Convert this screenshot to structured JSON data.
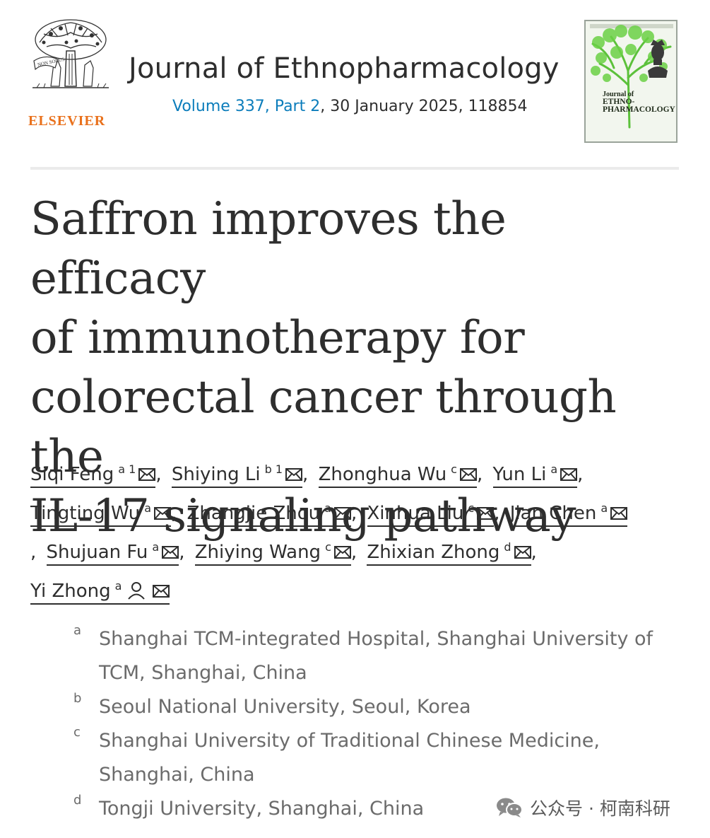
{
  "header": {
    "publisher": "ELSEVIER",
    "journal_title": "Journal of Ethnopharmacology",
    "volume_part": "Volume 337, Part 2",
    "date_article": ", 30 January 2025, 118854",
    "logo_motto": "NON SOLUS",
    "cover": {
      "line1": "Journal of",
      "line2": "ETHNO-",
      "line3": "PHARMACOLOGY"
    }
  },
  "article": {
    "title_lines": [
      "Saffron improves the efficacy",
      "of immunotherapy for",
      "colorectal cancer through the",
      "IL-17 signaling pathway"
    ]
  },
  "authors": [
    {
      "name": "Siqi Feng",
      "sup": "a 1"
    },
    {
      "name": "Shiying Li",
      "sup": "b 1"
    },
    {
      "name": "Zhonghua Wu",
      "sup": "c"
    },
    {
      "name": "Yun Li",
      "sup": "a"
    },
    {
      "name": "Tingting Wu",
      "sup": "a"
    },
    {
      "name": "Zhangjie Zhou",
      "sup": "a"
    },
    {
      "name": "Xinhua Liu",
      "sup": "c"
    },
    {
      "name": "Jian Chen",
      "sup": "a"
    },
    {
      "name": "Shujuan Fu",
      "sup": "a"
    },
    {
      "name": "Zhiying Wang",
      "sup": "c"
    },
    {
      "name": "Zhixian Zhong",
      "sup": "d"
    },
    {
      "name": "Yi Zhong",
      "sup": "a"
    }
  ],
  "affiliations": [
    {
      "label": "a",
      "text": "Shanghai TCM-integrated Hospital, Shanghai University of TCM, Shanghai, China"
    },
    {
      "label": "b",
      "text": "Seoul National University, Seoul, Korea"
    },
    {
      "label": "c",
      "text": "Shanghai University of Traditional Chinese Medicine, Shanghai, China"
    },
    {
      "label": "d",
      "text": "Tongji University, Shanghai, China"
    }
  ],
  "watermark": "公众号 · 柯南科研",
  "colors": {
    "publisher_orange": "#e9711c",
    "link_blue": "#0c7dbb",
    "text_dark": "#2e2e2e",
    "text_gray": "#6b6b6b",
    "cover_green": "#5cc13b"
  }
}
